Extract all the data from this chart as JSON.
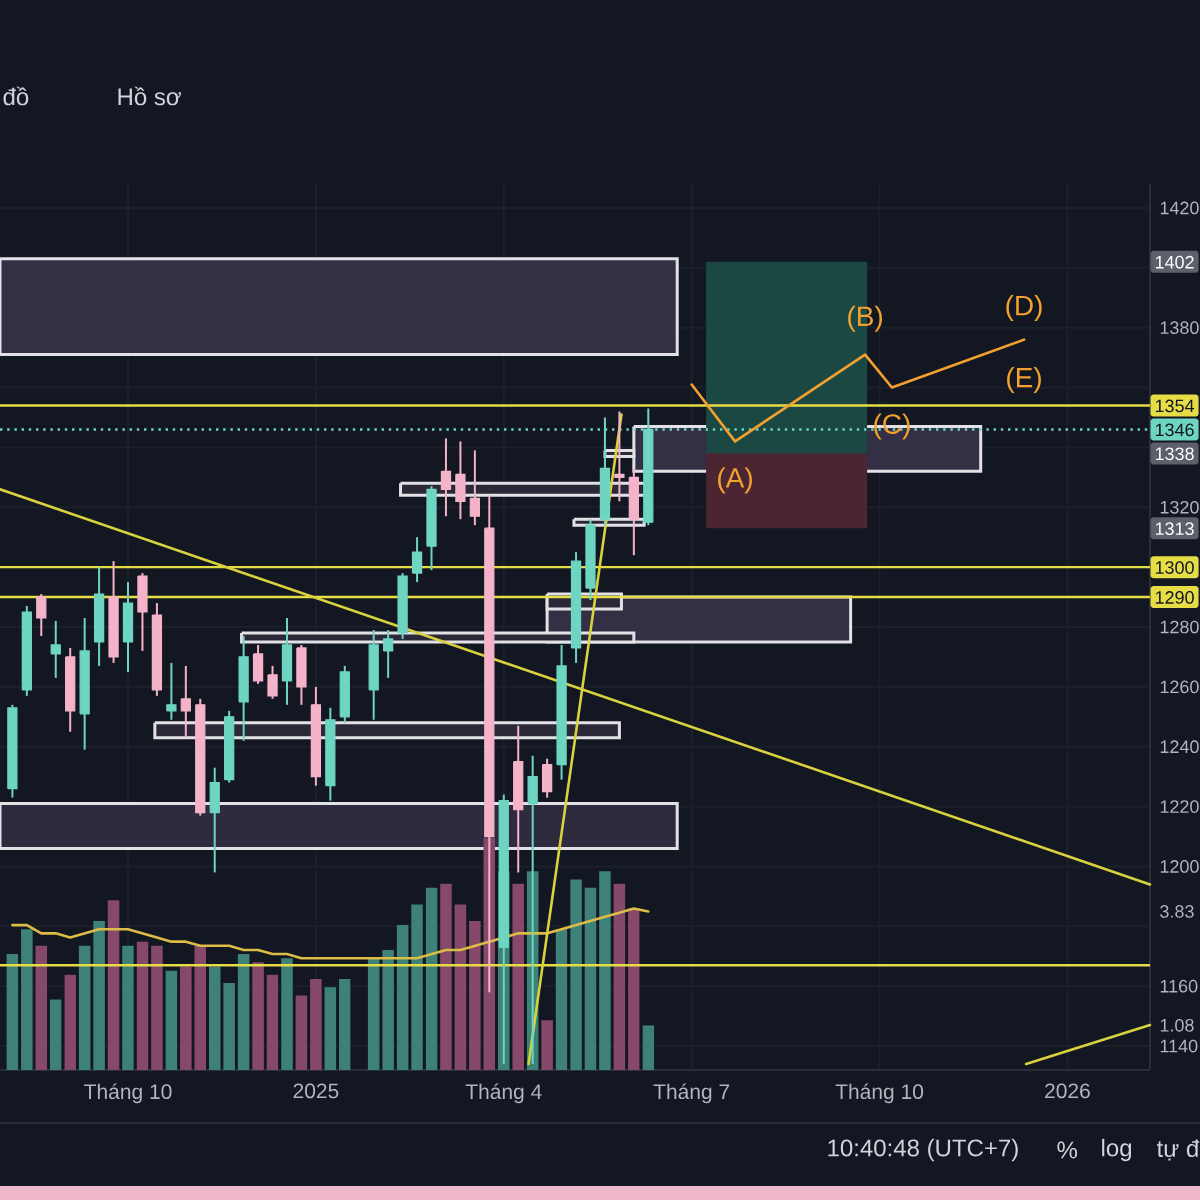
{
  "chart_data": {
    "type": "candlestick",
    "x": [
      "2024-08-12",
      "2024-08-19",
      "2024-08-26",
      "2024-09-02",
      "2024-09-09",
      "2024-09-16",
      "2024-09-23",
      "2024-09-30",
      "2024-10-07",
      "2024-10-14",
      "2024-10-21",
      "2024-10-28",
      "2024-11-04",
      "2024-11-11",
      "2024-11-18",
      "2024-11-25",
      "2024-12-02",
      "2024-12-09",
      "2024-12-16",
      "2024-12-23",
      "2024-12-30",
      "2025-01-06",
      "2025-01-13",
      "2025-01-20",
      "2025-02-03",
      "2025-02-10",
      "2025-02-17",
      "2025-02-24",
      "2025-03-03",
      "2025-03-10",
      "2025-03-17",
      "2025-03-24",
      "2025-03-31",
      "2025-04-07",
      "2025-04-14",
      "2025-04-21",
      "2025-04-28",
      "2025-05-05",
      "2025-05-12",
      "2025-05-19",
      "2025-05-26",
      "2025-06-02",
      "2025-06-09",
      "2025-06-16"
    ],
    "ohlc": [
      [
        1226,
        1254,
        1223,
        1253
      ],
      [
        1259,
        1287,
        1257,
        1285
      ],
      [
        1290,
        1291,
        1277,
        1283
      ],
      [
        1271,
        1282,
        1263,
        1274
      ],
      [
        1270,
        1273,
        1245,
        1252
      ],
      [
        1251,
        1283,
        1239,
        1272
      ],
      [
        1275,
        1300,
        1267,
        1291
      ],
      [
        1290,
        1302,
        1268,
        1270
      ],
      [
        1275,
        1295,
        1265,
        1288
      ],
      [
        1297,
        1298,
        1272,
        1285
      ],
      [
        1284,
        1288,
        1257,
        1259
      ],
      [
        1252,
        1268,
        1249,
        1254
      ],
      [
        1256,
        1267,
        1243,
        1252
      ],
      [
        1254,
        1256,
        1217,
        1218
      ],
      [
        1218,
        1233,
        1198,
        1228
      ],
      [
        1229,
        1252,
        1228,
        1250
      ],
      [
        1255,
        1277,
        1242,
        1270
      ],
      [
        1271,
        1274,
        1261,
        1262
      ],
      [
        1264,
        1267,
        1256,
        1257
      ],
      [
        1262,
        1283,
        1254,
        1274
      ],
      [
        1273,
        1274,
        1254,
        1260
      ],
      [
        1254,
        1260,
        1227,
        1230
      ],
      [
        1227,
        1253,
        1222,
        1249
      ],
      [
        1250,
        1267,
        1248,
        1265
      ],
      [
        1259,
        1279,
        1249,
        1274
      ],
      [
        1272,
        1279,
        1263,
        1276
      ],
      [
        1278,
        1298,
        1276,
        1297
      ],
      [
        1298,
        1310,
        1295,
        1305
      ],
      [
        1307,
        1327,
        1299,
        1326
      ],
      [
        1332,
        1343,
        1317,
        1326
      ],
      [
        1331,
        1342,
        1316,
        1322
      ],
      [
        1323,
        1339,
        1314,
        1317
      ],
      [
        1313,
        1324,
        1158,
        1210
      ],
      [
        1173,
        1224,
        1134,
        1222
      ],
      [
        1235,
        1247,
        1198,
        1219
      ],
      [
        1221,
        1237,
        1134,
        1230
      ],
      [
        1234,
        1236,
        1223,
        1225
      ],
      [
        1234,
        1274,
        1229,
        1267
      ],
      [
        1273,
        1305,
        1268,
        1302
      ],
      [
        1293,
        1316,
        1289,
        1314
      ],
      [
        1316,
        1350,
        1314,
        1333
      ],
      [
        1331,
        1352,
        1322,
        1330
      ],
      [
        1330,
        1333,
        1304,
        1316
      ],
      [
        1315,
        1353,
        1314,
        1346
      ]
    ],
    "colors": [
      "#6dd5c1",
      "#6dd5c1",
      "#f5b3c9",
      "#6dd5c1",
      "#f5b3c9",
      "#6dd5c1",
      "#6dd5c1",
      "#f5b3c9",
      "#6dd5c1",
      "#f5b3c9",
      "#f5b3c9",
      "#6dd5c1",
      "#f5b3c9",
      "#f5b3c9",
      "#6dd5c1",
      "#6dd5c1",
      "#6dd5c1",
      "#f5b3c9",
      "#f5b3c9",
      "#6dd5c1",
      "#f5b3c9",
      "#f5b3c9",
      "#6dd5c1",
      "#6dd5c1",
      "#6dd5c1",
      "#6dd5c1",
      "#6dd5c1",
      "#6dd5c1",
      "#6dd5c1",
      "#f5b3c9",
      "#f5b3c9",
      "#f5b3c9",
      "#f5b3c9",
      "#6dd5c1",
      "#f5b3c9",
      "#6dd5c1",
      "#f5b3c9",
      "#6dd5c1",
      "#6dd5c1",
      "#6dd5c1",
      "#6dd5c1",
      "#f5b3c9",
      "#f5b3c9",
      "#6dd5c1"
    ],
    "series": [
      {
        "type": "bar",
        "axis": "y2",
        "values": [
          2.8,
          3.4,
          3.0,
          1.7,
          2.3,
          3.0,
          3.6,
          4.1,
          3.0,
          3.1,
          3.0,
          2.4,
          2.5,
          3.0,
          2.5,
          2.1,
          2.8,
          2.6,
          2.3,
          2.7,
          1.8,
          2.2,
          2.0,
          2.2,
          2.7,
          2.9,
          3.5,
          4.0,
          4.4,
          4.5,
          4.0,
          3.6,
          5.6,
          4.8,
          4.5,
          4.8,
          1.2,
          3.4,
          4.6,
          4.4,
          4.8,
          4.5,
          3.9,
          1.08
        ],
        "colors": [
          "#3d8178",
          "#3d8178",
          "#86496a",
          "#3d8178",
          "#86496a",
          "#3d8178",
          "#3d8178",
          "#86496a",
          "#3d8178",
          "#86496a",
          "#86496a",
          "#3d8178",
          "#86496a",
          "#86496a",
          "#3d8178",
          "#3d8178",
          "#3d8178",
          "#86496a",
          "#86496a",
          "#3d8178",
          "#86496a",
          "#86496a",
          "#3d8178",
          "#3d8178",
          "#3d8178",
          "#3d8178",
          "#3d8178",
          "#3d8178",
          "#3d8178",
          "#86496a",
          "#86496a",
          "#86496a",
          "#86496a",
          "#3d8178",
          "#86496a",
          "#3d8178",
          "#86496a",
          "#3d8178",
          "#3d8178",
          "#3d8178",
          "#3d8178",
          "#86496a",
          "#86496a",
          "#3d8178"
        ]
      },
      {
        "type": "line",
        "axis": "y2",
        "values": [
          3.5,
          3.5,
          3.3,
          3.3,
          3.2,
          3.3,
          3.4,
          3.4,
          3.4,
          3.3,
          3.2,
          3.1,
          3.1,
          3.0,
          3.0,
          3.0,
          2.9,
          2.9,
          2.8,
          2.8,
          2.7,
          2.7,
          2.7,
          2.7,
          2.7,
          2.7,
          2.7,
          2.7,
          2.8,
          2.9,
          2.9,
          3.0,
          3.1,
          3.2,
          3.3,
          3.3,
          3.3,
          3.4,
          3.5,
          3.6,
          3.7,
          3.8,
          3.9,
          3.83
        ],
        "color": "#dcbc45"
      },
      {
        "type": "line",
        "x": [
          "2024-08-06",
          "2025-06-30"
        ],
        "values": [
          null,
          null
        ],
        "lower": [
          1371,
          1371
        ],
        "upper": [
          1403,
          1403
        ],
        "color": "#332f45",
        "line_style": "solid"
      },
      {
        "type": "line",
        "x": [
          "2025-06-09",
          "2025-11-24"
        ],
        "values": [
          null,
          null
        ],
        "lower": [
          1332,
          1332
        ],
        "upper": [
          1347,
          1347
        ],
        "color": "#332f45",
        "line_style": "solid"
      },
      {
        "type": "line",
        "x": [
          "2025-04-28",
          "2025-09-22"
        ],
        "values": [
          null,
          null
        ],
        "lower": [
          1275,
          1275
        ],
        "upper": [
          1290,
          1290
        ],
        "color": "#332f45",
        "line_style": "solid"
      },
      {
        "type": "line",
        "x": [
          "2024-08-06",
          "2025-06-30"
        ],
        "values": [
          null,
          null
        ],
        "lower": [
          1206,
          1206
        ],
        "upper": [
          1221,
          1221
        ],
        "color": "#2f2b3f",
        "line_style": "solid"
      },
      {
        "type": "line",
        "x": [
          "2024-12-01",
          "2025-06-09"
        ],
        "values": [
          null,
          null
        ],
        "lower": [
          1275,
          1275
        ],
        "upper": [
          1278,
          1278
        ],
        "color": "#2b2838",
        "line_style": "solid"
      },
      {
        "type": "line",
        "x": [
          "2024-10-20",
          "2025-06-02"
        ],
        "values": [
          null,
          null
        ],
        "lower": [
          1243,
          1243
        ],
        "upper": [
          1248,
          1248
        ],
        "color": "#2b2838",
        "line_style": "solid"
      },
      {
        "type": "line",
        "x": [
          "2025-02-16",
          "2025-06-16"
        ],
        "values": [
          null,
          null
        ],
        "lower": [
          1324,
          1324
        ],
        "upper": [
          1328,
          1328
        ],
        "color": "#2b2838",
        "line_style": "solid"
      },
      {
        "type": "line",
        "x": [
          "2025-05-11",
          "2025-06-14"
        ],
        "values": [
          null,
          null
        ],
        "lower": [
          1314,
          1314
        ],
        "upper": [
          1316,
          1316
        ],
        "color": "#2b2838",
        "line_style": "solid"
      },
      {
        "type": "line",
        "x": [
          "2025-05-26",
          "2025-06-09"
        ],
        "values": [
          null,
          null
        ],
        "lower": [
          1337,
          1337
        ],
        "upper": [
          1339,
          1339
        ],
        "color": "#2b2838",
        "line_style": "solid"
      },
      {
        "type": "line",
        "x": [
          "2025-04-28",
          "2025-06-03"
        ],
        "values": [
          null,
          null
        ],
        "lower": [
          1286,
          1286
        ],
        "upper": [
          1291,
          1291
        ],
        "color": "#2b2838",
        "line_style": "solid"
      },
      {
        "type": "line",
        "x": [
          "2025-07-14",
          "2025-09-30"
        ],
        "values": [
          null,
          null
        ],
        "lower": [
          1338,
          1338
        ],
        "upper": [
          1402,
          1402
        ],
        "color": "#1b4843"
      },
      {
        "type": "line",
        "x": [
          "2025-07-14",
          "2025-09-30"
        ],
        "values": [
          null,
          null
        ],
        "lower": [
          1313,
          1313
        ],
        "upper": [
          1338,
          1338
        ],
        "color": "#4b2531"
      },
      {
        "type": "line",
        "x": [
          "2024-08-06",
          "2026-02-14"
        ],
        "values": [
          1326,
          1194
        ],
        "color": "#d9d23f"
      },
      {
        "type": "line",
        "x": [
          "2025-04-19",
          "2025-06-03"
        ],
        "values": [
          1134,
          1351
        ],
        "color": "#d9d23f"
      },
      {
        "type": "line",
        "x": [
          "2025-12-16",
          "2026-02-14"
        ],
        "values": [
          1134,
          1147
        ],
        "color": "#d9d23f"
      },
      {
        "type": "line",
        "x": [
          "2025-07-07",
          "2025-07-28",
          "2025-09-29",
          "2025-10-12",
          "2025-12-15"
        ],
        "values": [
          1361,
          1342,
          1371,
          1360,
          1376
        ],
        "color": "#f2a12e"
      }
    ],
    "xlim": [
      "2024-08-06",
      "2026-02-14"
    ],
    "xticks": [
      {
        "value": "2024-10-07",
        "label": "Tháng 10"
      },
      {
        "value": "2025-01-06",
        "label": "2025"
      },
      {
        "value": "2025-04-07",
        "label": "Tháng 4"
      },
      {
        "value": "2025-07-07",
        "label": "Tháng 7"
      },
      {
        "value": "2025-10-06",
        "label": "Tháng 10"
      },
      {
        "value": "2026-01-05",
        "label": "2026"
      }
    ],
    "ylim": [
      1132,
      1428
    ],
    "yticks": [
      1420,
      {
        "value": 1400,
        "label": null
      },
      1380,
      {
        "value": 1360,
        "label": null
      },
      {
        "value": 1340,
        "label": null
      },
      1320,
      {
        "value": 1300,
        "label": null
      },
      1280,
      1260,
      1240,
      1220,
      1200,
      {
        "value": 1180,
        "label": null
      },
      1160,
      1140
    ],
    "y2lim": [
      0,
      21.4
    ],
    "y2ticks": [
      3.83,
      1.08
    ],
    "grid": true,
    "ref_lines": [
      {
        "axis": "y",
        "value": 1354,
        "label": "1354",
        "color": "#e6dc45"
      },
      {
        "axis": "y",
        "value": 1346,
        "label": "1346",
        "color": "#6dd5c1",
        "line_style": "dotted"
      },
      {
        "axis": "y",
        "value": 1300,
        "label": "1300",
        "color": "#e6dc45"
      },
      {
        "axis": "y",
        "value": 1290,
        "label": "1290",
        "color": "#e6dc45"
      },
      {
        "axis": "y",
        "value": 1167,
        "color": "#e6dc45"
      }
    ],
    "annotations": [
      "đồ",
      "Hồ sơ",
      {
        "text": "(A)",
        "x": "2025-07-28",
        "y": 1329
      },
      {
        "text": "(B)",
        "x": "2025-09-29",
        "y": 1383
      },
      {
        "text": "(C)",
        "x": "2025-10-12",
        "y": 1347
      },
      "(D)",
      "(E)",
      {
        "text": "1402",
        "y": 1402
      },
      {
        "text": "1338",
        "y": 1338
      },
      {
        "text": "1313",
        "y": 1313
      },
      "10:40:48 (UTC+7)",
      "%",
      "log",
      "tự đ"
    ]
  }
}
